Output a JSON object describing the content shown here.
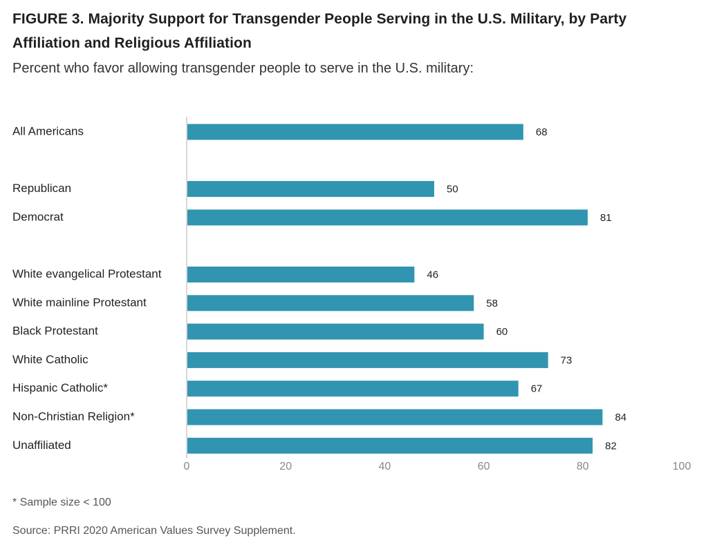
{
  "chart_data": {
    "type": "bar",
    "orientation": "horizontal",
    "title": "FIGURE 3. Majority Support for Transgender People Serving in the U.S. Military, by Party Affiliation and Religious Affiliation",
    "title_lines": [
      "FIGURE 3. Majority Support for Transgender People Serving in the U.S. Military, by Party",
      "Affiliation and Religious Affiliation"
    ],
    "subtitle": "Percent who favor allowing transgender people to serve in the U.S. military:",
    "groups": [
      [
        "All Americans"
      ],
      [
        "Republican",
        "Democrat"
      ],
      [
        "White evangelical Protestant",
        "White mainline Protestant",
        "Black Protestant",
        "White Catholic",
        "Hispanic Catholic*",
        "Non-Christian Religion*",
        "Unaffiliated"
      ]
    ],
    "categories": [
      "All Americans",
      "Republican",
      "Democrat",
      "White evangelical Protestant",
      "White mainline Protestant",
      "Black Protestant",
      "White Catholic",
      "Hispanic Catholic*",
      "Non-Christian Religion*",
      "Unaffiliated"
    ],
    "values": [
      68,
      50,
      81,
      46,
      58,
      60,
      73,
      67,
      84,
      82
    ],
    "xlim": [
      0,
      100
    ],
    "xticks": [
      0,
      20,
      40,
      60,
      80,
      100
    ],
    "xlabel": "",
    "ylabel": "",
    "grid": false,
    "legend": "none",
    "bar_color": "#3194b0",
    "note": "* Sample size < 100",
    "source": "Source: PRRI 2020 American Values Survey Supplement."
  }
}
